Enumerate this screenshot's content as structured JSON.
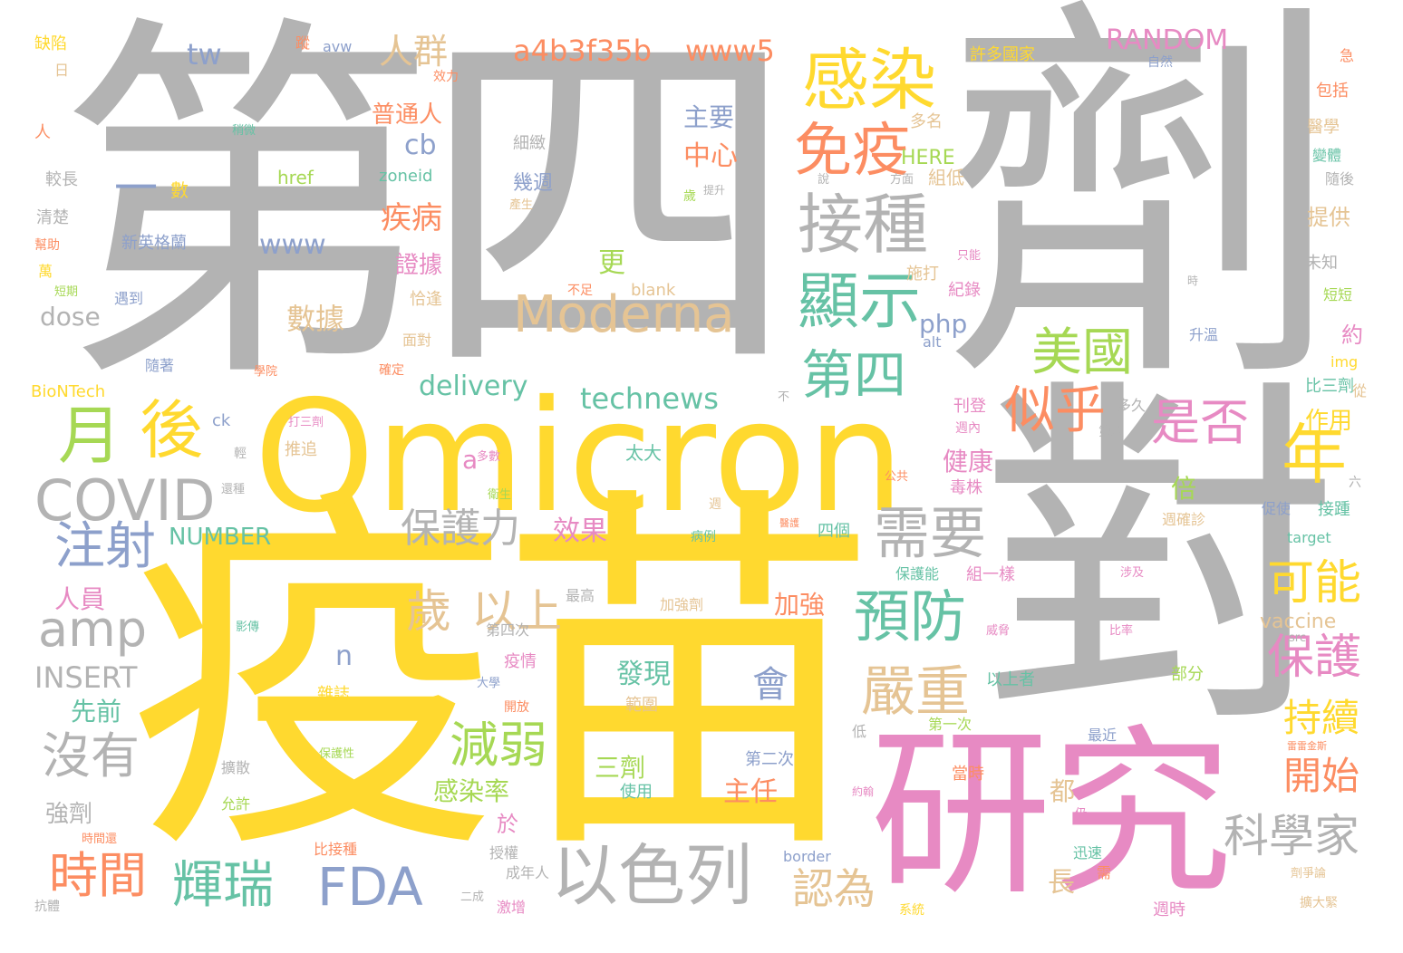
{
  "palette": {
    "gray": "#b3b3b3",
    "yellow": "#ffd92f",
    "pink": "#e78ac3",
    "green": "#66c2a5",
    "orange": "#fc8d62",
    "blue": "#8da0cb",
    "lime": "#a6d854",
    "tan": "#e5c494"
  },
  "words": [
    {
      "text": "第四",
      "color": "gray",
      "weight": 100
    },
    {
      "text": "劑",
      "color": "gray",
      "weight": 96
    },
    {
      "text": "對",
      "color": "gray",
      "weight": 88
    },
    {
      "text": "疫苗",
      "color": "yellow",
      "weight": 95
    },
    {
      "text": "Omicron",
      "color": "yellow",
      "weight": 70
    },
    {
      "text": "研究",
      "color": "pink",
      "weight": 72
    },
    {
      "text": "感染",
      "color": "yellow",
      "weight": 30
    },
    {
      "text": "接種",
      "color": "gray",
      "weight": 30
    },
    {
      "text": "免疫",
      "color": "orange",
      "weight": 28
    },
    {
      "text": "顯示",
      "color": "green",
      "weight": 28
    },
    {
      "text": "Moderna",
      "color": "tan",
      "weight": 25
    },
    {
      "text": "第四",
      "color": "green",
      "weight": 26
    },
    {
      "text": "美國",
      "color": "lime",
      "weight": 24
    },
    {
      "text": "似乎",
      "color": "orange",
      "weight": 24
    },
    {
      "text": "是否",
      "color": "pink",
      "weight": 22
    },
    {
      "text": "年",
      "color": "yellow",
      "weight": 26
    },
    {
      "text": "月",
      "color": "lime",
      "weight": 28
    },
    {
      "text": "後",
      "color": "yellow",
      "weight": 26
    },
    {
      "text": "COVID",
      "color": "gray",
      "weight": 26
    },
    {
      "text": "注射",
      "color": "blue",
      "weight": 26
    },
    {
      "text": "amp",
      "color": "gray",
      "weight": 22
    },
    {
      "text": "需要",
      "color": "gray",
      "weight": 26
    },
    {
      "text": "預防",
      "color": "green",
      "weight": 26
    },
    {
      "text": "可能",
      "color": "yellow",
      "weight": 22
    },
    {
      "text": "保護",
      "color": "pink",
      "weight": 22
    },
    {
      "text": "持續",
      "color": "yellow",
      "weight": 18
    },
    {
      "text": "開始",
      "color": "orange",
      "weight": 18
    },
    {
      "text": "嚴重",
      "color": "tan",
      "weight": 24
    },
    {
      "text": "歲",
      "color": "tan",
      "weight": 22
    },
    {
      "text": "以上",
      "color": "tan",
      "weight": 22
    },
    {
      "text": "保護力",
      "color": "gray",
      "weight": 20
    },
    {
      "text": "以色列",
      "color": "gray",
      "weight": 30
    },
    {
      "text": "科學家",
      "color": "gray",
      "weight": 22
    },
    {
      "text": "沒有",
      "color": "gray",
      "weight": 22
    },
    {
      "text": "減弱",
      "color": "lime",
      "weight": 22
    },
    {
      "text": "時間",
      "color": "orange",
      "weight": 24
    },
    {
      "text": "輝瑞",
      "color": "green",
      "weight": 24
    },
    {
      "text": "FDA",
      "color": "blue",
      "weight": 26
    },
    {
      "text": "認為",
      "color": "tan",
      "weight": 20
    },
    {
      "text": "人群",
      "color": "tan",
      "weight": 18
    },
    {
      "text": "a4b3f35b",
      "color": "orange",
      "weight": 16
    },
    {
      "text": "www5",
      "color": "orange",
      "weight": 16
    },
    {
      "text": "RANDOM",
      "color": "pink",
      "weight": 14
    },
    {
      "text": "tw",
      "color": "blue",
      "weight": 16
    },
    {
      "text": "一",
      "color": "blue",
      "weight": 16
    },
    {
      "text": "數",
      "color": "yellow",
      "weight": 8
    },
    {
      "text": "www",
      "color": "blue",
      "weight": 14
    },
    {
      "text": "疾病",
      "color": "orange",
      "weight": 16
    },
    {
      "text": "普通人",
      "color": "orange",
      "weight": 12
    },
    {
      "text": "cb",
      "color": "blue",
      "weight": 14
    },
    {
      "text": "證據",
      "color": "pink",
      "weight": 12
    },
    {
      "text": "數據",
      "color": "tan",
      "weight": 14
    },
    {
      "text": "更",
      "color": "lime",
      "weight": 12
    },
    {
      "text": "dose",
      "color": "gray",
      "weight": 12
    },
    {
      "text": "php",
      "color": "blue",
      "weight": 14
    },
    {
      "text": "HERE",
      "color": "lime",
      "weight": 10
    },
    {
      "text": "主要",
      "color": "blue",
      "weight": 12
    },
    {
      "text": "中心",
      "color": "orange",
      "weight": 14
    },
    {
      "text": "幾週",
      "color": "blue",
      "weight": 10
    },
    {
      "text": "delivery",
      "color": "green",
      "weight": 14
    },
    {
      "text": "technews",
      "color": "green",
      "weight": 16
    },
    {
      "text": "a",
      "color": "pink",
      "weight": 12
    },
    {
      "text": "健康",
      "color": "pink",
      "weight": 12
    },
    {
      "text": "倍",
      "color": "lime",
      "weight": 12
    },
    {
      "text": "作用",
      "color": "yellow",
      "weight": 12
    },
    {
      "text": "NUMBER",
      "color": "green",
      "weight": 12
    },
    {
      "text": "INSERT",
      "color": "gray",
      "weight": 14
    },
    {
      "text": "人員",
      "color": "pink",
      "weight": 12
    },
    {
      "text": "先前",
      "color": "green",
      "weight": 12
    },
    {
      "text": "n",
      "color": "blue",
      "weight": 12
    },
    {
      "text": "效果",
      "color": "pink",
      "weight": 14
    },
    {
      "text": "加強",
      "color": "orange",
      "weight": 12
    },
    {
      "text": "會",
      "color": "blue",
      "weight": 16
    },
    {
      "text": "發現",
      "color": "green",
      "weight": 14
    },
    {
      "text": "三劑",
      "color": "lime",
      "weight": 12
    },
    {
      "text": "主任",
      "color": "orange",
      "weight": 14
    },
    {
      "text": "感染率",
      "color": "lime",
      "weight": 12
    },
    {
      "text": "強劑",
      "color": "gray",
      "weight": 12
    },
    {
      "text": "都",
      "color": "tan",
      "weight": 12
    },
    {
      "text": "長",
      "color": "tan",
      "weight": 12
    },
    {
      "text": "vaccine",
      "color": "tan",
      "weight": 10
    },
    {
      "text": "於",
      "color": "pink",
      "weight": 10
    },
    {
      "text": "缺陷",
      "color": "yellow",
      "weight": 6
    },
    {
      "text": "日",
      "color": "tan",
      "weight": 6
    },
    {
      "text": "蹤",
      "color": "orange",
      "weight": 6
    },
    {
      "text": "avw",
      "color": "blue",
      "weight": 6
    },
    {
      "text": "效力",
      "color": "orange",
      "weight": 6
    },
    {
      "text": "許多國家",
      "color": "yellow",
      "weight": 7
    },
    {
      "text": "自然",
      "color": "blue",
      "weight": 6
    },
    {
      "text": "急",
      "color": "orange",
      "weight": 6
    },
    {
      "text": "包括",
      "color": "orange",
      "weight": 7
    },
    {
      "text": "醫學",
      "color": "tan",
      "weight": 7
    },
    {
      "text": "變體",
      "color": "green",
      "weight": 7
    },
    {
      "text": "隨後",
      "color": "gray",
      "weight": 6
    },
    {
      "text": "提供",
      "color": "tan",
      "weight": 8
    },
    {
      "text": "未知",
      "color": "gray",
      "weight": 6
    },
    {
      "text": "時",
      "color": "gray",
      "weight": 5
    },
    {
      "text": "短短",
      "color": "lime",
      "weight": 6
    },
    {
      "text": "約",
      "color": "pink",
      "weight": 8
    },
    {
      "text": "img",
      "color": "yellow",
      "weight": 6
    },
    {
      "text": "比三劑",
      "color": "green",
      "weight": 7
    },
    {
      "text": "從",
      "color": "tan",
      "weight": 6
    },
    {
      "text": "人",
      "color": "orange",
      "weight": 6
    },
    {
      "text": "稍微",
      "color": "green",
      "weight": 5
    },
    {
      "text": "細緻",
      "color": "gray",
      "weight": 6
    },
    {
      "text": "多名",
      "color": "tan",
      "weight": 6
    },
    {
      "text": "較長",
      "color": "gray",
      "weight": 6
    },
    {
      "text": "清楚",
      "color": "gray",
      "weight": 6
    },
    {
      "text": "幫助",
      "color": "orange",
      "weight": 5
    },
    {
      "text": "萬",
      "color": "yellow",
      "weight": 6
    },
    {
      "text": "短期",
      "color": "lime",
      "weight": 5
    },
    {
      "text": "遇到",
      "color": "blue",
      "weight": 6
    },
    {
      "text": "新英格蘭",
      "color": "blue",
      "weight": 7
    },
    {
      "text": "href",
      "color": "lime",
      "weight": 7
    },
    {
      "text": "zoneid",
      "color": "green",
      "weight": 7
    },
    {
      "text": "產生",
      "color": "tan",
      "weight": 5
    },
    {
      "text": "歲",
      "color": "lime",
      "weight": 5
    },
    {
      "text": "提升",
      "color": "gray",
      "weight": 5
    },
    {
      "text": "說",
      "color": "gray",
      "weight": 5
    },
    {
      "text": "方面",
      "color": "gray",
      "weight": 5
    },
    {
      "text": "組低",
      "color": "tan",
      "weight": 6
    },
    {
      "text": "施打",
      "color": "tan",
      "weight": 6
    },
    {
      "text": "只能",
      "color": "pink",
      "weight": 5
    },
    {
      "text": "紀錄",
      "color": "pink",
      "weight": 6
    },
    {
      "text": "恰逢",
      "color": "tan",
      "weight": 6
    },
    {
      "text": "不足",
      "color": "orange",
      "weight": 5
    },
    {
      "text": "blank",
      "color": "tan",
      "weight": 6
    },
    {
      "text": "升溫",
      "color": "blue",
      "weight": 6
    },
    {
      "text": "alt",
      "color": "blue",
      "weight": 5
    },
    {
      "text": "面對",
      "color": "tan",
      "weight": 6
    },
    {
      "text": "隨著",
      "color": "blue",
      "weight": 6
    },
    {
      "text": "學院",
      "color": "orange",
      "weight": 5
    },
    {
      "text": "確定",
      "color": "orange",
      "weight": 5
    },
    {
      "text": "BioNTech",
      "color": "yellow",
      "weight": 6
    },
    {
      "text": "ck",
      "color": "blue",
      "weight": 6
    },
    {
      "text": "打三劑",
      "color": "pink",
      "weight": 5
    },
    {
      "text": "推追",
      "color": "tan",
      "weight": 6
    },
    {
      "text": "不",
      "color": "gray",
      "weight": 5
    },
    {
      "text": "刊登",
      "color": "pink",
      "weight": 6
    },
    {
      "text": "多久",
      "color": "gray",
      "weight": 6
    },
    {
      "text": "週內",
      "color": "pink",
      "weight": 5
    },
    {
      "text": "第八",
      "color": "gray",
      "weight": 5
    },
    {
      "text": "太大",
      "color": "green",
      "weight": 6
    },
    {
      "text": "多數",
      "color": "pink",
      "weight": 5
    },
    {
      "text": "輕",
      "color": "gray",
      "weight": 5
    },
    {
      "text": "還種",
      "color": "gray",
      "weight": 5
    },
    {
      "text": "衛生",
      "color": "lime",
      "weight": 5
    },
    {
      "text": "公共",
      "color": "orange",
      "weight": 5
    },
    {
      "text": "毒株",
      "color": "pink",
      "weight": 6
    },
    {
      "text": "六",
      "color": "gray",
      "weight": 5
    },
    {
      "text": "週",
      "color": "tan",
      "weight": 5
    },
    {
      "text": "醫護",
      "color": "orange",
      "weight": 4
    },
    {
      "text": "四個",
      "color": "green",
      "weight": 6
    },
    {
      "text": "病例",
      "color": "green",
      "weight": 5
    },
    {
      "text": "週確診",
      "color": "tan",
      "weight": 6
    },
    {
      "text": "促使",
      "color": "blue",
      "weight": 6
    },
    {
      "text": "接踵",
      "color": "green",
      "weight": 6
    },
    {
      "text": "target",
      "color": "green",
      "weight": 6
    },
    {
      "text": "最高",
      "color": "gray",
      "weight": 6
    },
    {
      "text": "保護能",
      "color": "green",
      "weight": 6
    },
    {
      "text": "組一樣",
      "color": "pink",
      "weight": 6
    },
    {
      "text": "涉及",
      "color": "pink",
      "weight": 5
    },
    {
      "text": "加強劑",
      "color": "tan",
      "weight": 6
    },
    {
      "text": "影傳",
      "color": "green",
      "weight": 5
    },
    {
      "text": "第四次",
      "color": "gray",
      "weight": 6
    },
    {
      "text": "威脅",
      "color": "pink",
      "weight": 5
    },
    {
      "text": "比率",
      "color": "pink",
      "weight": 5
    },
    {
      "text": "src",
      "color": "gray",
      "weight": 5
    },
    {
      "text": "疫情",
      "color": "pink",
      "weight": 6
    },
    {
      "text": "大學",
      "color": "blue",
      "weight": 5
    },
    {
      "text": "雜誌",
      "color": "yellow",
      "weight": 6
    },
    {
      "text": "開放",
      "color": "orange",
      "weight": 6
    },
    {
      "text": "以上者",
      "color": "green",
      "weight": 6
    },
    {
      "text": "部分",
      "color": "lime",
      "weight": 6
    },
    {
      "text": "範圍",
      "color": "tan",
      "weight": 6
    },
    {
      "text": "低",
      "color": "gray",
      "weight": 5
    },
    {
      "text": "第一次",
      "color": "lime",
      "weight": 6
    },
    {
      "text": "最近",
      "color": "blue",
      "weight": 6
    },
    {
      "text": "雷雷金斯",
      "color": "orange",
      "weight": 4
    },
    {
      "text": "擴散",
      "color": "gray",
      "weight": 6
    },
    {
      "text": "保護性",
      "color": "lime",
      "weight": 5
    },
    {
      "text": "第二次",
      "color": "blue",
      "weight": 6
    },
    {
      "text": "當時",
      "color": "orange",
      "weight": 6
    },
    {
      "text": "約翰",
      "color": "pink",
      "weight": 5
    },
    {
      "text": "使用",
      "color": "green",
      "weight": 6
    },
    {
      "text": "允許",
      "color": "lime",
      "weight": 6
    },
    {
      "text": "仍",
      "color": "pink",
      "weight": 5
    },
    {
      "text": "時間還",
      "color": "orange",
      "weight": 5
    },
    {
      "text": "比接種",
      "color": "orange",
      "weight": 6
    },
    {
      "text": "授權",
      "color": "gray",
      "weight": 6
    },
    {
      "text": "成年人",
      "color": "gray",
      "weight": 6
    },
    {
      "text": "border",
      "color": "blue",
      "weight": 6
    },
    {
      "text": "迅速",
      "color": "green",
      "weight": 6
    },
    {
      "text": "需",
      "color": "orange",
      "weight": 6
    },
    {
      "text": "劑爭論",
      "color": "tan",
      "weight": 5
    },
    {
      "text": "擴大緊",
      "color": "tan",
      "weight": 5
    },
    {
      "text": "抗體",
      "color": "gray",
      "weight": 5
    },
    {
      "text": "二成",
      "color": "gray",
      "weight": 5
    },
    {
      "text": "激增",
      "color": "pink",
      "weight": 6
    },
    {
      "text": "系統",
      "color": "yellow",
      "weight": 5
    },
    {
      "text": "週時",
      "color": "pink",
      "weight": 6
    }
  ]
}
